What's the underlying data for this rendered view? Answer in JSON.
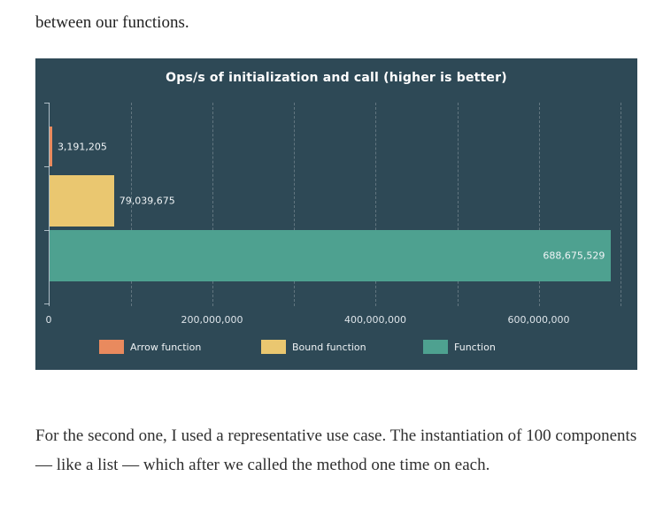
{
  "document": {
    "intro_text": "between our functions.",
    "body_text": "For the second one, I used a representative use case. The instantiation of 100 components — like a list — which after we called the method one time on each."
  },
  "chart_data": {
    "type": "bar",
    "orientation": "horizontal",
    "title": "Ops/s of initialization and call (higher is better)",
    "categories": [
      "Arrow function",
      "Bound function",
      "Function"
    ],
    "values": [
      3191205,
      79039675,
      688675529
    ],
    "value_labels": [
      "3,191,205",
      "79,039,675",
      "688,675,529"
    ],
    "colors": [
      "#e98a5e",
      "#eac770",
      "#4ea190"
    ],
    "background": "#2e4956",
    "xlabel": "",
    "ylabel": "",
    "xlim": [
      0,
      710000000
    ],
    "gridline_interval": 100000000,
    "grid": "dashed-vertical",
    "x_ticks": [
      {
        "value": 0,
        "label": "0"
      },
      {
        "value": 200000000,
        "label": "200,000,000"
      },
      {
        "value": 400000000,
        "label": "400,000,000"
      },
      {
        "value": 600000000,
        "label": "600,000,000"
      }
    ],
    "legend_position": "bottom",
    "legend": [
      {
        "label": "Arrow function",
        "color": "#e98a5e"
      },
      {
        "label": "Bound function",
        "color": "#eac770"
      },
      {
        "label": "Function",
        "color": "#4ea190"
      }
    ]
  }
}
